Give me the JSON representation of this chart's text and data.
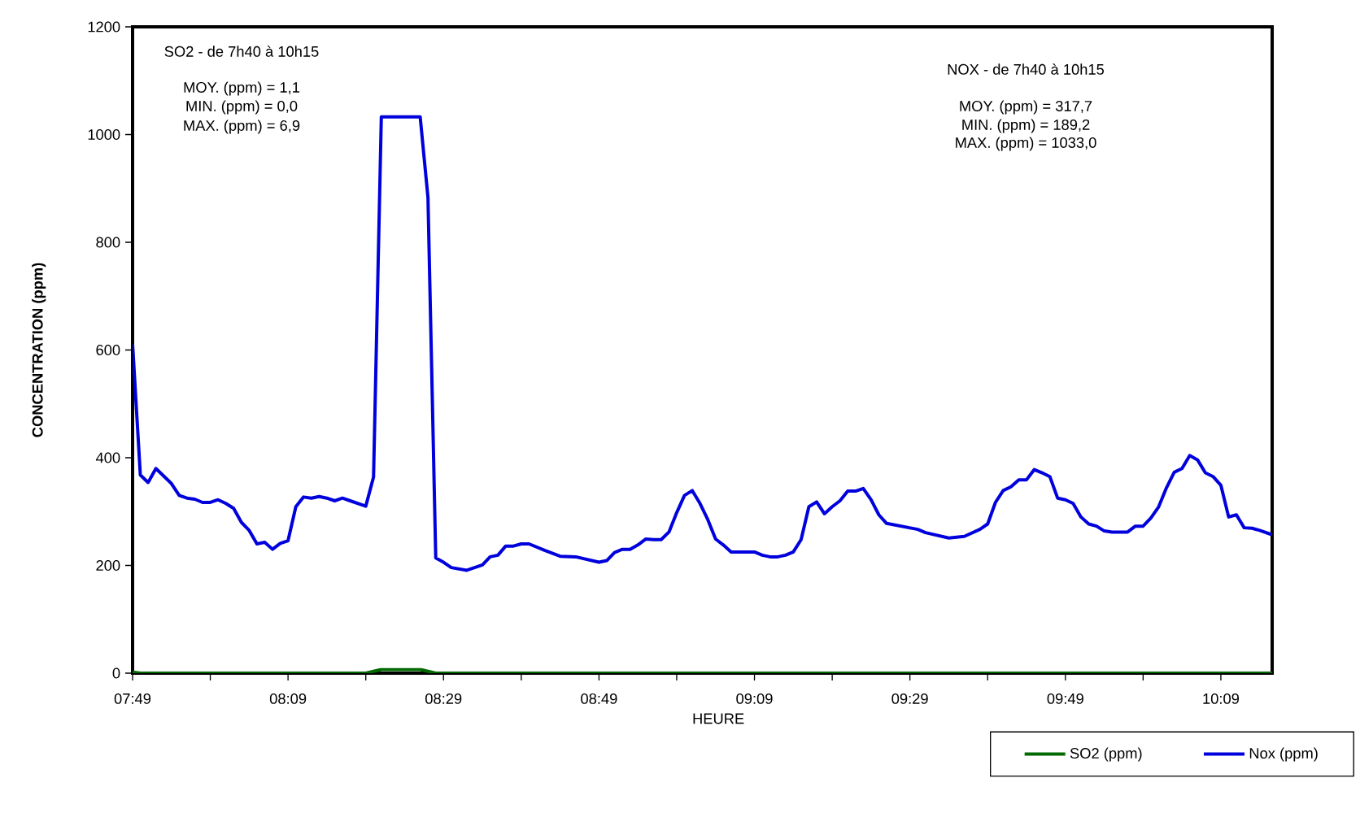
{
  "chart_data": {
    "type": "line",
    "xlabel": "HEURE",
    "ylabel": "CONCENTRATION (ppm)",
    "xlim": [
      7.8167,
      10.26
    ],
    "ylim": [
      0,
      1200
    ],
    "xticks": [
      {
        "value": 7.8167,
        "label": "07:49"
      },
      {
        "value": 7.9833,
        "label": null
      },
      {
        "value": 8.15,
        "label": "08:09"
      },
      {
        "value": 8.3167,
        "label": null
      },
      {
        "value": 8.4833,
        "label": "08:29"
      },
      {
        "value": 8.65,
        "label": null
      },
      {
        "value": 8.8167,
        "label": "08:49"
      },
      {
        "value": 8.9833,
        "label": null
      },
      {
        "value": 9.15,
        "label": "09:09"
      },
      {
        "value": 9.3167,
        "label": null
      },
      {
        "value": 9.4833,
        "label": "09:29"
      },
      {
        "value": 9.65,
        "label": null
      },
      {
        "value": 9.8167,
        "label": "09:49"
      },
      {
        "value": 9.9833,
        "label": null
      },
      {
        "value": 10.15,
        "label": "10:09"
      }
    ],
    "yticks": [
      0,
      200,
      400,
      600,
      800,
      1000,
      1200
    ],
    "grid": false,
    "legend": "bottom right",
    "marker": "none",
    "line_style": "solid",
    "annotations": [
      "SO2 - de 7h40 à 10h15",
      "MOY. (ppm) = 1,1",
      "MIN. (ppm) = 0,0",
      "MAX. (ppm) = 6,9",
      "NOX - de 7h40 à 10h15",
      "MOY. (ppm) = 317,7",
      "MIN. (ppm) = 189,2",
      "MAX. (ppm) = 1033,0"
    ],
    "series": [
      {
        "name": "SO2 (ppm)",
        "color": "#006a00",
        "x": [
          7.8167,
          7.8333,
          8.3167,
          8.35,
          8.4333,
          8.4667,
          10.26
        ],
        "values": [
          2,
          0,
          0,
          6.9,
          6.9,
          0,
          0
        ]
      },
      {
        "name": "Nox (ppm)",
        "color": "#0000dd",
        "x": [
          7.8167,
          7.8333,
          7.85,
          7.8667,
          7.9,
          7.9167,
          7.9333,
          7.95,
          7.9667,
          7.9833,
          8.0,
          8.0167,
          8.0333,
          8.05,
          8.0667,
          8.0833,
          8.1,
          8.1167,
          8.1333,
          8.15,
          8.1667,
          8.1833,
          8.2,
          8.2167,
          8.2333,
          8.25,
          8.2667,
          8.2833,
          8.3167,
          8.3333,
          8.35,
          8.4333,
          8.45,
          8.4667,
          8.4833,
          8.5,
          8.5333,
          8.5667,
          8.5833,
          8.6,
          8.6167,
          8.6333,
          8.65,
          8.6667,
          8.7,
          8.7333,
          8.7667,
          8.8167,
          8.8333,
          8.85,
          8.8667,
          8.8833,
          8.9,
          8.9167,
          8.9333,
          8.95,
          8.9667,
          8.9833,
          9.0,
          9.0167,
          9.0333,
          9.05,
          9.0667,
          9.0833,
          9.1,
          9.1167,
          9.15,
          9.1667,
          9.1833,
          9.2,
          9.2167,
          9.2333,
          9.25,
          9.2667,
          9.2833,
          9.3,
          9.3167,
          9.3333,
          9.35,
          9.3667,
          9.3833,
          9.4,
          9.4167,
          9.4333,
          9.5,
          9.5167,
          9.5667,
          9.6,
          9.6333,
          9.65,
          9.6667,
          9.6833,
          9.7,
          9.7167,
          9.7333,
          9.75,
          9.7667,
          9.7833,
          9.8,
          9.8167,
          9.8333,
          9.85,
          9.8667,
          9.8833,
          9.9,
          9.9167,
          9.95,
          9.9667,
          9.9833,
          10.0,
          10.0167,
          10.0333,
          10.05,
          10.0667,
          10.0833,
          10.1,
          10.1167,
          10.1333,
          10.15,
          10.1667,
          10.1833,
          10.2,
          10.2167,
          10.2333,
          10.26
        ],
        "values": [
          611,
          368,
          354,
          380,
          352,
          330,
          325,
          323,
          317,
          317,
          322,
          315,
          306,
          280,
          265,
          240,
          243,
          230,
          241,
          246,
          309,
          327,
          325,
          328,
          325,
          320,
          325,
          320,
          310,
          364,
          1033,
          1033,
          883,
          214,
          206,
          196,
          191,
          201,
          216,
          219,
          236,
          236,
          240,
          240,
          228,
          217,
          216,
          206,
          209,
          224,
          230,
          230,
          238,
          249,
          248,
          248,
          262,
          298,
          330,
          339,
          315,
          285,
          249,
          238,
          225,
          225,
          225,
          219,
          216,
          216,
          219,
          225,
          248,
          309,
          318,
          296,
          309,
          320,
          338,
          338,
          343,
          322,
          294,
          278,
          267,
          261,
          251,
          254,
          267,
          277,
          317,
          339,
          346,
          359,
          359,
          378,
          372,
          365,
          325,
          322,
          315,
          290,
          277,
          273,
          264,
          262,
          262,
          273,
          273,
          288,
          309,
          344,
          373,
          380,
          404,
          396,
          372,
          365,
          349,
          290,
          294,
          270,
          269,
          265,
          257
        ]
      }
    ]
  }
}
